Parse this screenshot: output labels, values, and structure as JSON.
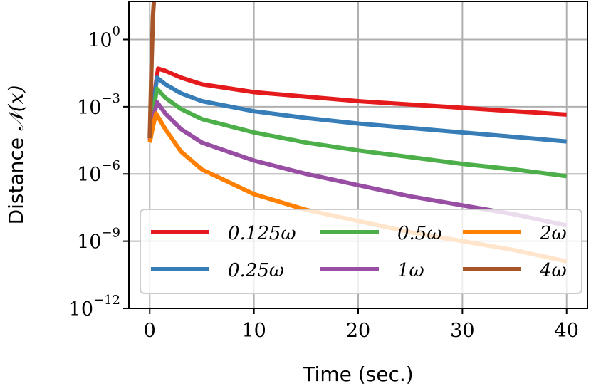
{
  "chart_data": {
    "type": "line",
    "title": "",
    "xlabel": "Time (sec.)",
    "ylabel_prefix": "Distance",
    "ylabel_math": "𝒩(x)",
    "xlim": [
      -2,
      42
    ],
    "ylim_log10": [
      -12,
      1.7
    ],
    "yscale": "log",
    "grid": true,
    "x_ticks": [
      {
        "value": 0,
        "label": "0"
      },
      {
        "value": 10,
        "label": "10"
      },
      {
        "value": 20,
        "label": "20"
      },
      {
        "value": 30,
        "label": "30"
      },
      {
        "value": 40,
        "label": "40"
      }
    ],
    "y_ticks": [
      {
        "exp": 0,
        "base": "10",
        "sup": "0"
      },
      {
        "exp": -3,
        "base": "10",
        "sup": "−3"
      },
      {
        "exp": -6,
        "base": "10",
        "sup": "−6"
      },
      {
        "exp": -9,
        "base": "10",
        "sup": "−9"
      },
      {
        "exp": -12,
        "base": "10",
        "sup": "−12"
      }
    ],
    "legend_position": "lower-right",
    "series": [
      {
        "name": "0.125ω",
        "color": "#e41a1c",
        "points": [
          [
            0,
            -4.2
          ],
          [
            0.3,
            -2.9
          ],
          [
            0.8,
            -1.3
          ],
          [
            1.5,
            -1.4
          ],
          [
            3,
            -1.7
          ],
          [
            5,
            -2.0
          ],
          [
            10,
            -2.35
          ],
          [
            15,
            -2.55
          ],
          [
            20,
            -2.75
          ],
          [
            25,
            -2.9
          ],
          [
            30,
            -3.05
          ],
          [
            35,
            -3.2
          ],
          [
            40,
            -3.35
          ]
        ]
      },
      {
        "name": "0.25ω",
        "color": "#377eb8",
        "points": [
          [
            0,
            -4.3
          ],
          [
            0.3,
            -3.1
          ],
          [
            0.7,
            -1.7
          ],
          [
            1.5,
            -2.0
          ],
          [
            3,
            -2.4
          ],
          [
            5,
            -2.75
          ],
          [
            10,
            -3.2
          ],
          [
            15,
            -3.5
          ],
          [
            20,
            -3.75
          ],
          [
            25,
            -3.95
          ],
          [
            30,
            -4.15
          ],
          [
            35,
            -4.35
          ],
          [
            40,
            -4.55
          ]
        ]
      },
      {
        "name": "0.5ω",
        "color": "#4daf4a",
        "points": [
          [
            0,
            -4.4
          ],
          [
            0.3,
            -3.3
          ],
          [
            0.7,
            -2.2
          ],
          [
            1.5,
            -2.6
          ],
          [
            3,
            -3.1
          ],
          [
            5,
            -3.55
          ],
          [
            10,
            -4.15
          ],
          [
            15,
            -4.6
          ],
          [
            20,
            -4.95
          ],
          [
            25,
            -5.25
          ],
          [
            30,
            -5.55
          ],
          [
            35,
            -5.8
          ],
          [
            40,
            -6.1
          ]
        ]
      },
      {
        "name": "1ω",
        "color": "#984ea3",
        "points": [
          [
            0,
            -4.5
          ],
          [
            0.3,
            -3.6
          ],
          [
            0.7,
            -2.8
          ],
          [
            1.5,
            -3.3
          ],
          [
            3,
            -4.0
          ],
          [
            5,
            -4.6
          ],
          [
            10,
            -5.4
          ],
          [
            15,
            -6.0
          ],
          [
            20,
            -6.5
          ],
          [
            25,
            -7.0
          ],
          [
            30,
            -7.4
          ],
          [
            35,
            -7.8
          ],
          [
            40,
            -8.3
          ]
        ]
      },
      {
        "name": "2ω",
        "color": "#ff7f00",
        "points": [
          [
            0,
            -4.6
          ],
          [
            0.3,
            -3.9
          ],
          [
            0.6,
            -3.3
          ],
          [
            1.5,
            -4.0
          ],
          [
            3,
            -5.0
          ],
          [
            5,
            -5.8
          ],
          [
            10,
            -6.9
          ],
          [
            15,
            -7.6
          ],
          [
            20,
            -8.1
          ],
          [
            25,
            -8.6
          ],
          [
            30,
            -9.0
          ],
          [
            35,
            -9.4
          ],
          [
            40,
            -9.9
          ]
        ]
      },
      {
        "name": "4ω",
        "color": "#a65628",
        "points": [
          [
            0,
            -4.4
          ],
          [
            0.15,
            -1.5
          ],
          [
            0.3,
            1.0
          ],
          [
            0.4,
            1.7
          ]
        ]
      }
    ]
  }
}
